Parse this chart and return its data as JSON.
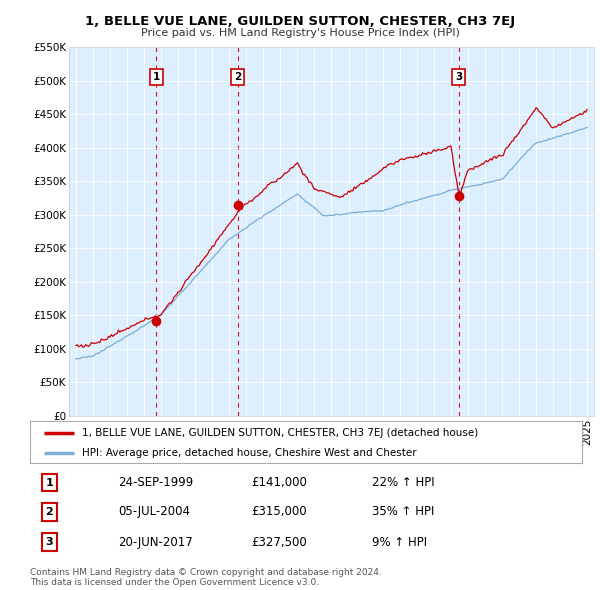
{
  "title": "1, BELLE VUE LANE, GUILDEN SUTTON, CHESTER, CH3 7EJ",
  "subtitle": "Price paid vs. HM Land Registry's House Price Index (HPI)",
  "sale_dates_yr": [
    1999.73,
    2004.5,
    2017.46
  ],
  "sale_prices": [
    141000,
    315000,
    327500
  ],
  "sale_labels": [
    "1",
    "2",
    "3"
  ],
  "legend_line1": "1, BELLE VUE LANE, GUILDEN SUTTON, CHESTER, CH3 7EJ (detached house)",
  "legend_line2": "HPI: Average price, detached house, Cheshire West and Chester",
  "table_rows": [
    [
      "1",
      "24-SEP-1999",
      "£141,000",
      "22% ↑ HPI"
    ],
    [
      "2",
      "05-JUL-2004",
      "£315,000",
      "35% ↑ HPI"
    ],
    [
      "3",
      "20-JUN-2017",
      "£327,500",
      "9% ↑ HPI"
    ]
  ],
  "footnote1": "Contains HM Land Registry data © Crown copyright and database right 2024.",
  "footnote2": "This data is licensed under the Open Government Licence v3.0.",
  "red_color": "#cc0000",
  "blue_color": "#7aaed6",
  "bg_color": "#ddeeff",
  "ylim": [
    0,
    550000
  ],
  "yticks": [
    0,
    50000,
    100000,
    150000,
    200000,
    250000,
    300000,
    350000,
    400000,
    450000,
    500000,
    550000
  ],
  "xlim_min": 1994.6,
  "xlim_max": 2025.4
}
